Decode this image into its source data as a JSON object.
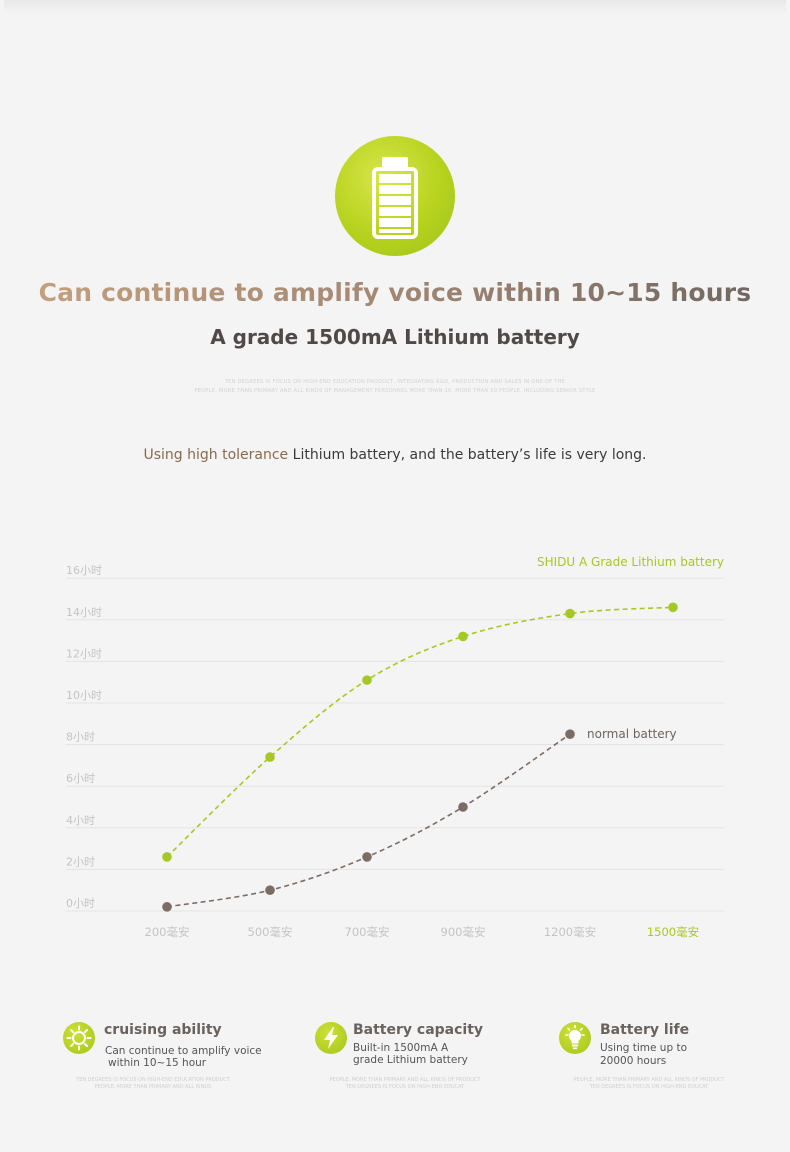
{
  "hero": {
    "headline": "Can continue to amplify voice within 10~15 hours",
    "subheadline": "A grade 1500mA Lithium battery",
    "tiny_line1": "TEN DEGREES IS FOCUS ON HIGH-END EDUCATION PRODUCT, INTEGRATING R&D, PRODUCTION AND SALES IN ONE OF THE",
    "tiny_line2": "PEOPLE, MORE THAN PRIMARY AND ALL KINDS OF MANAGEMENT PERSONNEL MORE THAN 10, MORE THAN 50 PEOPLE, INCLUDING SENIOR STYLE"
  },
  "description": {
    "accent": "Using high tolerance",
    "rest": " Lithium battery, and the battery’s life is very long."
  },
  "chart_data": {
    "type": "line",
    "x_categories": [
      "200毫安",
      "500毫安",
      "700毫安",
      "900毫安",
      "1200毫安",
      "1500毫安"
    ],
    "y_ticks": [
      "0小时",
      "2小时",
      "4小时",
      "6小时",
      "8小时",
      "10小时",
      "12小时",
      "14小时",
      "16小时"
    ],
    "ylim": [
      0,
      16
    ],
    "grid": true,
    "series": [
      {
        "name": "SHIDU A Grade Lithium battery",
        "color": "#a6c826",
        "x": [
          "200毫安",
          "500毫安",
          "700毫安",
          "900毫安",
          "1200毫安",
          "1500毫安"
        ],
        "values": [
          2.6,
          7.4,
          11.1,
          13.2,
          14.3,
          14.6
        ]
      },
      {
        "name": "normal battery",
        "color": "#7c6d64",
        "x": [
          "200毫安",
          "500毫安",
          "700毫安",
          "900毫安",
          "1200毫安"
        ],
        "values": [
          0.2,
          1.0,
          2.6,
          5.0,
          8.5
        ]
      }
    ],
    "highlight_category_color": "#a6c826"
  },
  "features": [
    {
      "icon": "sun-icon",
      "title": "cruising ability",
      "line1": "Can continue to amplify voice",
      "line2": "within 10~15 hour",
      "tiny1": "TEN DEGREES IS FOCUS ON HIGH-END EDUCATION PRODUCT",
      "tiny2": "PEOPLE, MORE THAN PRIMARY AND ALL KINDS"
    },
    {
      "icon": "lightning-icon",
      "title": "Battery capacity",
      "line1": "Built-in 1500mA A",
      "line2": "grade Lithium battery",
      "tiny1": "PEOPLE, MORE THAN PRIMARY AND ALL KINDS OF PRODUCT",
      "tiny2": "TEN DEGREES IS FOCUS ON HIGH-END EDUCAT"
    },
    {
      "icon": "lightbulb-icon",
      "title": "Battery life",
      "line1": "Using time up to",
      "line2": "20000 hours",
      "tiny1": "PEOPLE, MORE THAN PRIMARY AND ALL KINDS OF PRODUCT",
      "tiny2": "TEN DEGREES IS FOCUS ON HIGH-END EDUCAT"
    }
  ]
}
